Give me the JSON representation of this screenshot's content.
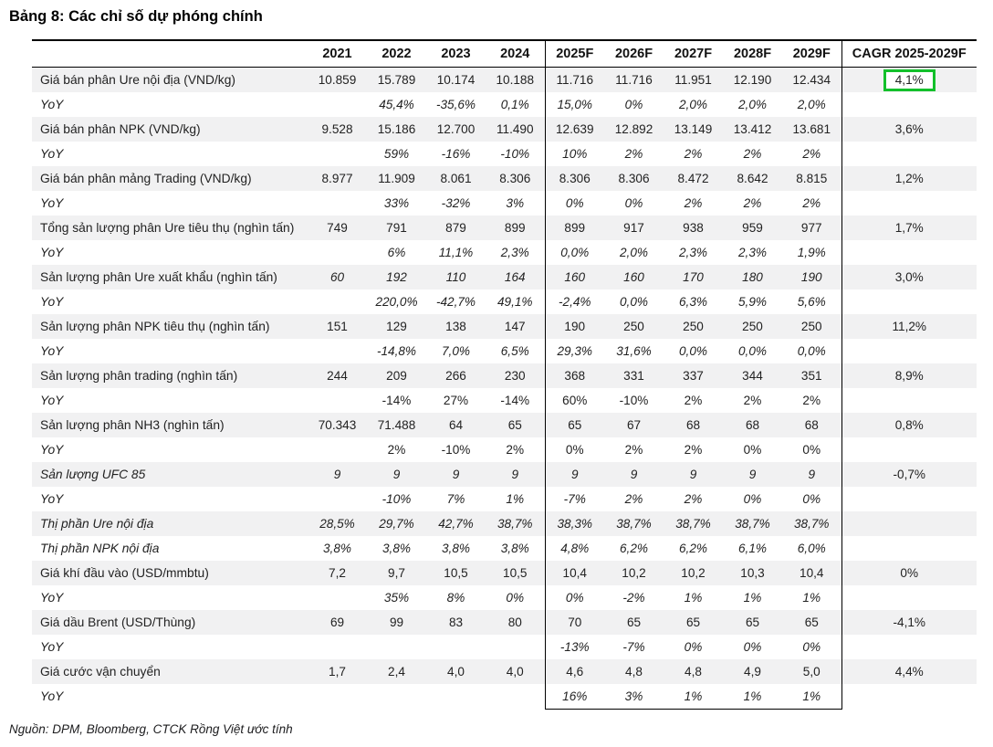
{
  "title": "Bảng 8: Các chỉ số dự phóng chính",
  "source_note": "Nguồn: DPM, Bloomberg, CTCK Rồng Việt ước tính",
  "colors": {
    "highlight_green": "#13c02b",
    "row_stripe": "#f1f1f2",
    "border": "#000000",
    "text": "#1c1c1e"
  },
  "table": {
    "columns": [
      "",
      "2021",
      "2022",
      "2023",
      "2024",
      "2025F",
      "2026F",
      "2027F",
      "2028F",
      "2029F",
      "CAGR 2025-2029F"
    ],
    "rows": [
      {
        "label": "Giá bán phân Ure nội địa (VND/kg)",
        "label_italic": false,
        "values_italic": false,
        "values": [
          "10.859",
          "15.789",
          "10.174",
          "10.188",
          "11.716",
          "11.716",
          "11.951",
          "12.190",
          "12.434"
        ],
        "cagr": "4,1%",
        "cagr_highlight": true
      },
      {
        "label": "YoY",
        "label_italic": true,
        "values_italic": true,
        "values": [
          "",
          "45,4%",
          "-35,6%",
          "0,1%",
          "15,0%",
          "0%",
          "2,0%",
          "2,0%",
          "2,0%"
        ],
        "cagr": "",
        "cagr_highlight": false
      },
      {
        "label": "Giá bán phân NPK (VND/kg)",
        "label_italic": false,
        "values_italic": false,
        "values": [
          "9.528",
          "15.186",
          "12.700",
          "11.490",
          "12.639",
          "12.892",
          "13.149",
          "13.412",
          "13.681"
        ],
        "cagr": "3,6%",
        "cagr_highlight": false
      },
      {
        "label": "YoY",
        "label_italic": true,
        "values_italic": true,
        "values": [
          "",
          "59%",
          "-16%",
          "-10%",
          "10%",
          "2%",
          "2%",
          "2%",
          "2%"
        ],
        "cagr": "",
        "cagr_highlight": false
      },
      {
        "label": "Giá bán phân mảng Trading (VND/kg)",
        "label_italic": false,
        "values_italic": false,
        "values": [
          "8.977",
          "11.909",
          "8.061",
          "8.306",
          "8.306",
          "8.306",
          "8.472",
          "8.642",
          "8.815"
        ],
        "cagr": "1,2%",
        "cagr_highlight": false
      },
      {
        "label": "YoY",
        "label_italic": true,
        "values_italic": true,
        "values": [
          "",
          "33%",
          "-32%",
          "3%",
          "0%",
          "0%",
          "2%",
          "2%",
          "2%"
        ],
        "cagr": "",
        "cagr_highlight": false
      },
      {
        "label": "Tổng sản lượng phân Ure tiêu thụ (nghìn tấn)",
        "label_italic": false,
        "values_italic": false,
        "values": [
          "749",
          "791",
          "879",
          "899",
          "899",
          "917",
          "938",
          "959",
          "977"
        ],
        "cagr": "1,7%",
        "cagr_highlight": false
      },
      {
        "label": "YoY",
        "label_italic": true,
        "values_italic": true,
        "values": [
          "",
          "6%",
          "11,1%",
          "2,3%",
          "0,0%",
          "2,0%",
          "2,3%",
          "2,3%",
          "1,9%"
        ],
        "cagr": "",
        "cagr_highlight": false
      },
      {
        "label": "Sản lượng phân Ure xuất khẩu (nghìn tấn)",
        "label_italic": false,
        "values_italic": true,
        "values": [
          "60",
          "192",
          "110",
          "164",
          "160",
          "160",
          "170",
          "180",
          "190"
        ],
        "cagr": "3,0%",
        "cagr_highlight": false
      },
      {
        "label": "YoY",
        "label_italic": true,
        "values_italic": true,
        "values": [
          "",
          "220,0%",
          "-42,7%",
          "49,1%",
          "-2,4%",
          "0,0%",
          "6,3%",
          "5,9%",
          "5,6%"
        ],
        "cagr": "",
        "cagr_highlight": false
      },
      {
        "label": "Sản lượng phân NPK tiêu thụ (nghìn tấn)",
        "label_italic": false,
        "values_italic": false,
        "values": [
          "151",
          "129",
          "138",
          "147",
          "190",
          "250",
          "250",
          "250",
          "250"
        ],
        "cagr": "11,2%",
        "cagr_highlight": false
      },
      {
        "label": "YoY",
        "label_italic": true,
        "values_italic": true,
        "values": [
          "",
          "-14,8%",
          "7,0%",
          "6,5%",
          "29,3%",
          "31,6%",
          "0,0%",
          "0,0%",
          "0,0%"
        ],
        "cagr": "",
        "cagr_highlight": false
      },
      {
        "label": "Sản lượng phân trading (nghìn tấn)",
        "label_italic": false,
        "values_italic": false,
        "values": [
          "244",
          "209",
          "266",
          "230",
          "368",
          "331",
          "337",
          "344",
          "351"
        ],
        "cagr": "8,9%",
        "cagr_highlight": false
      },
      {
        "label": "YoY",
        "label_italic": true,
        "values_italic": false,
        "values": [
          "",
          "-14%",
          "27%",
          "-14%",
          "60%",
          "-10%",
          "2%",
          "2%",
          "2%"
        ],
        "cagr": "",
        "cagr_highlight": false
      },
      {
        "label": "Sản lượng phân NH3 (nghìn tấn)",
        "label_italic": false,
        "values_italic": false,
        "values": [
          "70.343",
          "71.488",
          "64",
          "65",
          "65",
          "67",
          "68",
          "68",
          "68"
        ],
        "cagr": "0,8%",
        "cagr_highlight": false
      },
      {
        "label": "YoY",
        "label_italic": true,
        "values_italic": false,
        "values": [
          "",
          "2%",
          "-10%",
          "2%",
          "0%",
          "2%",
          "2%",
          "0%",
          "0%"
        ],
        "cagr": "",
        "cagr_highlight": false
      },
      {
        "label": "Sản lượng UFC 85",
        "label_italic": true,
        "values_italic": true,
        "values": [
          "9",
          "9",
          "9",
          "9",
          "9",
          "9",
          "9",
          "9",
          "9"
        ],
        "cagr": "-0,7%",
        "cagr_highlight": false
      },
      {
        "label": "YoY",
        "label_italic": true,
        "values_italic": true,
        "values": [
          "",
          "-10%",
          "7%",
          "1%",
          "-7%",
          "2%",
          "2%",
          "0%",
          "0%"
        ],
        "cagr": "",
        "cagr_highlight": false
      },
      {
        "label": "Thị phần Ure nội địa",
        "label_italic": true,
        "values_italic": true,
        "values": [
          "28,5%",
          "29,7%",
          "42,7%",
          "38,7%",
          "38,3%",
          "38,7%",
          "38,7%",
          "38,7%",
          "38,7%"
        ],
        "cagr": "",
        "cagr_highlight": false
      },
      {
        "label": "Thị phần NPK nội địa",
        "label_italic": true,
        "values_italic": true,
        "values": [
          "3,8%",
          "3,8%",
          "3,8%",
          "3,8%",
          "4,8%",
          "6,2%",
          "6,2%",
          "6,1%",
          "6,0%"
        ],
        "cagr": "",
        "cagr_highlight": false
      },
      {
        "label": "Giá khí đầu vào (USD/mmbtu)",
        "label_italic": false,
        "values_italic": false,
        "values": [
          "7,2",
          "9,7",
          "10,5",
          "10,5",
          "10,4",
          "10,2",
          "10,2",
          "10,3",
          "10,4"
        ],
        "cagr": "0%",
        "cagr_highlight": false
      },
      {
        "label": "YoY",
        "label_italic": true,
        "values_italic": true,
        "values": [
          "",
          "35%",
          "8%",
          "0%",
          "0%",
          "-2%",
          "1%",
          "1%",
          "1%"
        ],
        "cagr": "",
        "cagr_highlight": false
      },
      {
        "label": "Giá dầu Brent (USD/Thùng)",
        "label_italic": false,
        "values_italic": false,
        "values": [
          "69",
          "99",
          "83",
          "80",
          "70",
          "65",
          "65",
          "65",
          "65"
        ],
        "cagr": "-4,1%",
        "cagr_highlight": false
      },
      {
        "label": "YoY",
        "label_italic": true,
        "values_italic": true,
        "values": [
          "",
          "",
          "",
          "",
          "-13%",
          "-7%",
          "0%",
          "0%",
          "0%"
        ],
        "cagr": "",
        "cagr_highlight": false
      },
      {
        "label": "Giá cước vận chuyển",
        "label_italic": false,
        "values_italic": false,
        "values": [
          "1,7",
          "2,4",
          "4,0",
          "4,0",
          "4,6",
          "4,8",
          "4,8",
          "4,9",
          "5,0"
        ],
        "cagr": "4,4%",
        "cagr_highlight": false
      },
      {
        "label": "YoY",
        "label_italic": true,
        "values_italic": true,
        "values": [
          "",
          "",
          "",
          "",
          "16%",
          "3%",
          "1%",
          "1%",
          "1%"
        ],
        "cagr": "",
        "cagr_highlight": false
      }
    ]
  }
}
